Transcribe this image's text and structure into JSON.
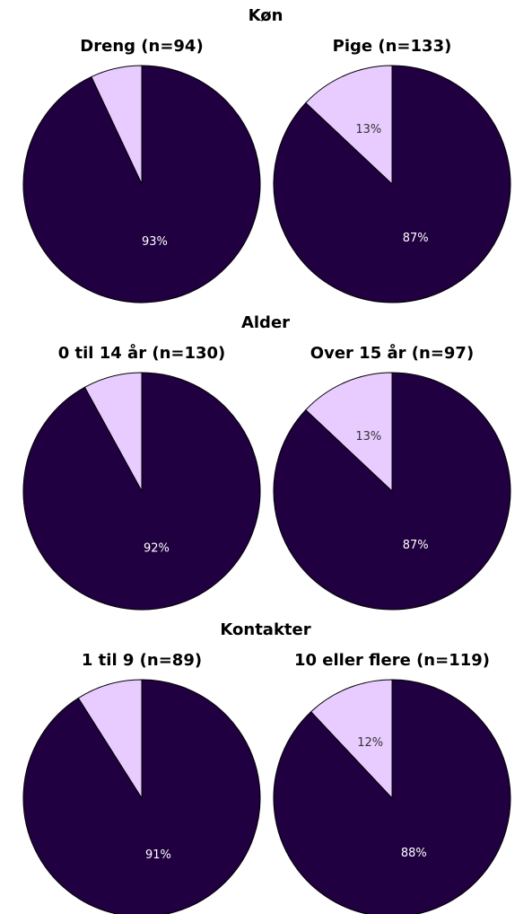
{
  "chart_data": [
    {
      "type": "pie",
      "title": "Køn",
      "subplots": [
        {
          "title": "Dreng (n=94)",
          "values": [
            7,
            93
          ],
          "value_labels": [
            null,
            "93%"
          ],
          "colors": [
            "#e8ccff",
            "#200040"
          ]
        },
        {
          "title": "Pige (n=133)",
          "values": [
            13,
            87
          ],
          "value_labels": [
            "13%",
            "87%"
          ],
          "colors": [
            "#e8ccff",
            "#200040"
          ]
        }
      ]
    },
    {
      "type": "pie",
      "title": "Alder",
      "subplots": [
        {
          "title": "0 til 14 år (n=130)",
          "values": [
            8,
            92
          ],
          "value_labels": [
            null,
            "92%"
          ],
          "colors": [
            "#e8ccff",
            "#200040"
          ]
        },
        {
          "title": "Over 15 år (n=97)",
          "values": [
            13,
            87
          ],
          "value_labels": [
            "13%",
            "87%"
          ],
          "colors": [
            "#e8ccff",
            "#200040"
          ]
        }
      ]
    },
    {
      "type": "pie",
      "title": "Kontakter",
      "subplots": [
        {
          "title": "1 til 9 (n=89)",
          "values": [
            9,
            91
          ],
          "value_labels": [
            null,
            "91%"
          ],
          "colors": [
            "#e8ccff",
            "#200040"
          ]
        },
        {
          "title": "10 eller flere (n=119)",
          "values": [
            12,
            88
          ],
          "value_labels": [
            "12%",
            "88%"
          ],
          "colors": [
            "#e8ccff",
            "#200040"
          ]
        }
      ]
    }
  ]
}
